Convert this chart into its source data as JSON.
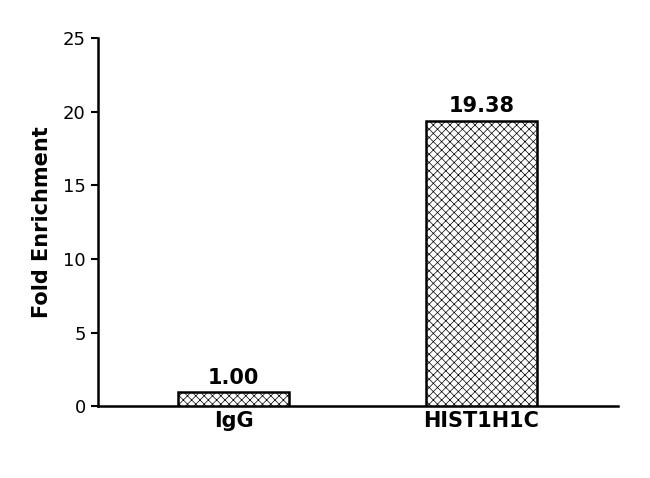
{
  "categories": [
    "IgG",
    "HIST1H1C"
  ],
  "values": [
    1.0,
    19.38
  ],
  "bar_labels": [
    "1.00",
    "19.38"
  ],
  "ylabel": "Fold Enrichment",
  "ylim": [
    0,
    25
  ],
  "yticks": [
    0,
    5,
    10,
    15,
    20,
    25
  ],
  "bar_facecolor": "#ffffff",
  "bar_edgecolor": "#000000",
  "hatch": "xxxx",
  "bar_width": 0.45,
  "label_fontsize": 15,
  "tick_fontsize": 13,
  "ylabel_fontsize": 15,
  "xlabel_fontsize": 15,
  "label_fontweight": "bold",
  "background_color": "#ffffff",
  "bar_positions": [
    0,
    1
  ],
  "xlim": [
    -0.55,
    1.55
  ],
  "figwidth": 6.5,
  "figheight": 4.78,
  "dpi": 100
}
